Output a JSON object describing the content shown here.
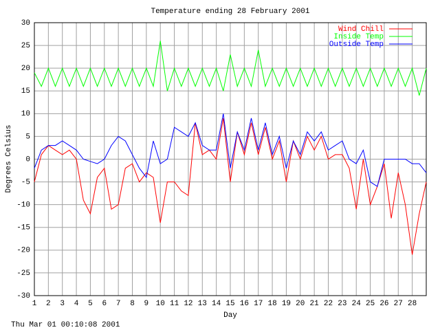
{
  "chart_data": {
    "type": "line",
    "title": "Temperature ending 28 February 2001",
    "xlabel": "Day",
    "ylabel": "Degrees Celsius",
    "footer": "Thu Mar 01 00:10:08 2001",
    "x": [
      1,
      1.5,
      2,
      2.5,
      3,
      3.5,
      4,
      4.5,
      5,
      5.5,
      6,
      6.5,
      7,
      7.5,
      8,
      8.5,
      9,
      9.5,
      10,
      10.5,
      11,
      11.5,
      12,
      12.5,
      13,
      13.5,
      14,
      14.5,
      15,
      15.5,
      16,
      16.5,
      17,
      17.5,
      18,
      18.5,
      19,
      19.5,
      20,
      20.5,
      21,
      21.5,
      22,
      22.5,
      23,
      23.5,
      24,
      24.5,
      25,
      25.5,
      26,
      26.5,
      27,
      27.5,
      28,
      28.5,
      29
    ],
    "series": [
      {
        "name": "Wind Chill",
        "color": "#ff0000",
        "values": [
          -5,
          1,
          3,
          2,
          1,
          2,
          0,
          -9,
          -12,
          -4,
          -2,
          -11,
          -10,
          -2,
          -1,
          -5,
          -3,
          -4,
          -14,
          -5,
          -5,
          -7,
          -8,
          8,
          1,
          2,
          0,
          9,
          -5,
          6,
          1,
          8,
          1,
          7,
          0,
          4,
          -5,
          4,
          0,
          5,
          2,
          5,
          0,
          1,
          1,
          -2,
          -11,
          0,
          -10,
          -6,
          -1,
          -13,
          -3,
          -10,
          -21,
          -12,
          -5
        ]
      },
      {
        "name": "Inside Temp",
        "color": "#00ff00",
        "values": [
          19,
          16,
          20,
          16,
          20,
          16,
          20,
          16,
          20,
          16,
          20,
          16,
          20,
          16,
          20,
          16,
          20,
          16,
          26,
          15,
          20,
          16,
          20,
          16,
          20,
          16,
          20,
          15,
          23,
          16,
          20,
          16,
          24,
          16,
          20,
          16,
          20,
          16,
          20,
          16,
          20,
          16,
          20,
          16,
          20,
          16,
          20,
          16,
          20,
          16,
          20,
          16,
          20,
          16,
          20,
          14,
          20
        ]
      },
      {
        "name": "Outside Temp",
        "color": "#0000ff",
        "values": [
          -2,
          2,
          3,
          3,
          4,
          3,
          2,
          0,
          -0.5,
          -1,
          0,
          3,
          5,
          4,
          1,
          -2,
          -4,
          4,
          -1,
          0,
          7,
          6,
          5,
          8,
          3,
          2,
          2,
          10,
          -2,
          6,
          2,
          9,
          2,
          8,
          1,
          5,
          -2,
          4,
          1,
          6,
          4,
          6,
          2,
          3,
          4,
          0,
          -1,
          2,
          -5,
          -6,
          0,
          0,
          0,
          0,
          -1,
          -1,
          -3
        ]
      }
    ],
    "xlim": [
      1,
      29
    ],
    "ylim": [
      -30,
      30
    ],
    "xticks": [
      1,
      2,
      3,
      4,
      5,
      6,
      7,
      8,
      9,
      10,
      11,
      12,
      13,
      14,
      15,
      16,
      17,
      18,
      19,
      20,
      21,
      22,
      23,
      24,
      25,
      26,
      27,
      28
    ],
    "yticks": [
      -30,
      -25,
      -20,
      -15,
      -10,
      -5,
      0,
      5,
      10,
      15,
      20,
      25,
      30
    ],
    "grid": true,
    "legend": "top-right"
  }
}
